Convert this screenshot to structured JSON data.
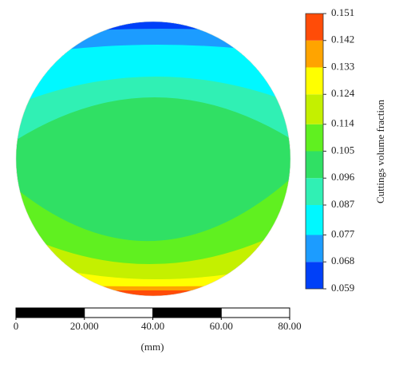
{
  "chart_data": {
    "type": "contour",
    "colorbar": {
      "label": "Cuttings volume fraction",
      "ticks": [
        0.059,
        0.068,
        0.077,
        0.087,
        0.096,
        0.105,
        0.114,
        0.124,
        0.133,
        0.142,
        0.151
      ],
      "colors": [
        "#0040f8",
        "#1c9cff",
        "#00f8ff",
        "#30f0b4",
        "#30e064",
        "#60f020",
        "#c4f000",
        "#ffff00",
        "#ffa400",
        "#ff4c08"
      ]
    },
    "scale_bar": {
      "xlim": [
        0,
        80
      ],
      "xticks": [
        0,
        {
          "value": 20,
          "label": "20.000"
        },
        {
          "value": 40,
          "label": "40.00"
        },
        {
          "value": 60,
          "label": "60.00"
        },
        {
          "value": 80,
          "label": "80.00"
        }
      ],
      "unit": "(mm)"
    }
  }
}
